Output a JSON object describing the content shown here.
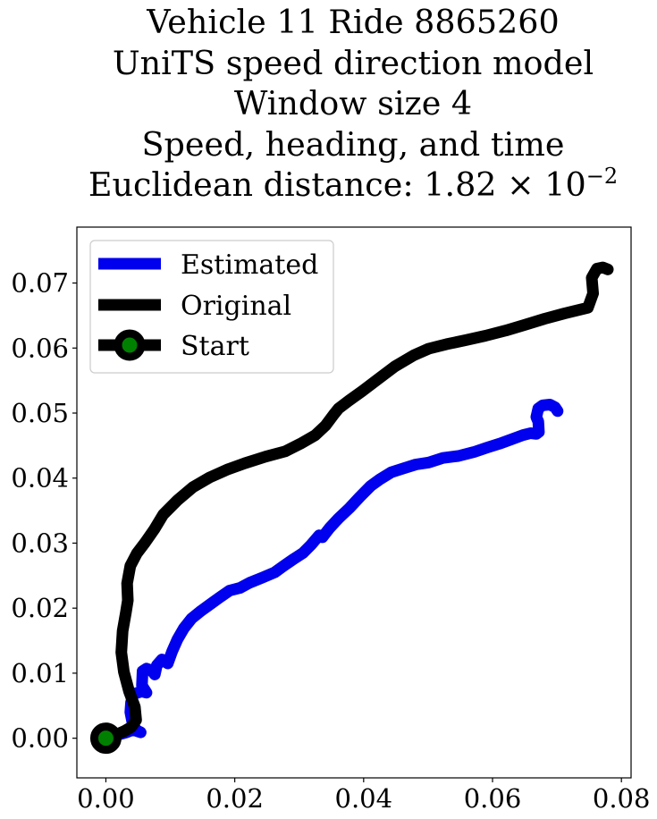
{
  "chart_data": {
    "type": "line",
    "title_lines": [
      "Vehicle 11 Ride 8865260",
      "UniTS speed direction model",
      "Window size 4",
      "Speed, heading, and time",
      "Euclidean distance: 1.82 × 10"
    ],
    "title_exponent": "−2",
    "xlabel": "",
    "ylabel": "",
    "xlim": [
      -0.0045,
      0.0815
    ],
    "ylim": [
      -0.0061,
      0.0786
    ],
    "x_ticks": [
      0.0,
      0.02,
      0.04,
      0.06,
      0.08
    ],
    "x_tick_labels": [
      "0.00",
      "0.02",
      "0.04",
      "0.06",
      "0.08"
    ],
    "y_ticks": [
      0.0,
      0.01,
      0.02,
      0.03,
      0.04,
      0.05,
      0.06,
      0.07
    ],
    "y_tick_labels": [
      "0.00",
      "0.01",
      "0.02",
      "0.03",
      "0.04",
      "0.05",
      "0.06",
      "0.07"
    ],
    "grid": false,
    "legend_position": "top-left",
    "series": [
      {
        "name": "Estimated",
        "color": "#0000ee",
        "points": [
          [
            0.0,
            0.0
          ],
          [
            0.0018,
            0.0005
          ],
          [
            0.0032,
            0.0009
          ],
          [
            0.0042,
            0.0013
          ],
          [
            0.0054,
            0.0009
          ],
          [
            0.0048,
            0.0012
          ],
          [
            0.0042,
            0.002
          ],
          [
            0.0038,
            0.004
          ],
          [
            0.0039,
            0.0055
          ],
          [
            0.0043,
            0.0068
          ],
          [
            0.0056,
            0.0072
          ],
          [
            0.0063,
            0.007
          ],
          [
            0.0056,
            0.0081
          ],
          [
            0.0057,
            0.0103
          ],
          [
            0.0063,
            0.0107
          ],
          [
            0.0071,
            0.0104
          ],
          [
            0.0076,
            0.0098
          ],
          [
            0.0079,
            0.0112
          ],
          [
            0.0087,
            0.0121
          ],
          [
            0.0096,
            0.0115
          ],
          [
            0.0103,
            0.0134
          ],
          [
            0.0111,
            0.0152
          ],
          [
            0.0121,
            0.0169
          ],
          [
            0.0133,
            0.0184
          ],
          [
            0.0148,
            0.0196
          ],
          [
            0.0162,
            0.0206
          ],
          [
            0.0176,
            0.0216
          ],
          [
            0.0192,
            0.0227
          ],
          [
            0.0208,
            0.0231
          ],
          [
            0.0223,
            0.0239
          ],
          [
            0.0243,
            0.0247
          ],
          [
            0.0262,
            0.0255
          ],
          [
            0.0276,
            0.0265
          ],
          [
            0.0292,
            0.0276
          ],
          [
            0.0306,
            0.0285
          ],
          [
            0.0319,
            0.0298
          ],
          [
            0.0331,
            0.0312
          ],
          [
            0.0336,
            0.0309
          ],
          [
            0.0347,
            0.0323
          ],
          [
            0.0361,
            0.0338
          ],
          [
            0.0378,
            0.0354
          ],
          [
            0.0394,
            0.0371
          ],
          [
            0.0411,
            0.0388
          ],
          [
            0.0425,
            0.0398
          ],
          [
            0.0443,
            0.0409
          ],
          [
            0.0462,
            0.0415
          ],
          [
            0.0481,
            0.0421
          ],
          [
            0.0501,
            0.0424
          ],
          [
            0.0523,
            0.0431
          ],
          [
            0.0547,
            0.0434
          ],
          [
            0.0571,
            0.044
          ],
          [
            0.0592,
            0.0447
          ],
          [
            0.0611,
            0.0453
          ],
          [
            0.0628,
            0.0459
          ],
          [
            0.0647,
            0.0466
          ],
          [
            0.0659,
            0.0469
          ],
          [
            0.0668,
            0.0468
          ],
          [
            0.0672,
            0.0471
          ],
          [
            0.0671,
            0.0487
          ],
          [
            0.0668,
            0.0494
          ],
          [
            0.0671,
            0.0507
          ],
          [
            0.0678,
            0.0512
          ],
          [
            0.0689,
            0.0513
          ],
          [
            0.0697,
            0.0509
          ],
          [
            0.0701,
            0.0503
          ]
        ]
      },
      {
        "name": "Original",
        "color": "#000000",
        "points": [
          [
            0.0,
            0.0
          ],
          [
            0.0017,
            0.0006
          ],
          [
            0.0029,
            0.0011
          ],
          [
            0.0039,
            0.0017
          ],
          [
            0.0047,
            0.0028
          ],
          [
            0.0045,
            0.0048
          ],
          [
            0.0036,
            0.0072
          ],
          [
            0.0028,
            0.0102
          ],
          [
            0.0024,
            0.0132
          ],
          [
            0.0026,
            0.0165
          ],
          [
            0.0031,
            0.0193
          ],
          [
            0.0034,
            0.0212
          ],
          [
            0.0033,
            0.0238
          ],
          [
            0.0038,
            0.0265
          ],
          [
            0.0048,
            0.0284
          ],
          [
            0.0061,
            0.0301
          ],
          [
            0.0075,
            0.0321
          ],
          [
            0.0089,
            0.0344
          ],
          [
            0.0111,
            0.0366
          ],
          [
            0.0135,
            0.0386
          ],
          [
            0.0161,
            0.0401
          ],
          [
            0.0188,
            0.0413
          ],
          [
            0.0216,
            0.0423
          ],
          [
            0.0248,
            0.0433
          ],
          [
            0.0278,
            0.0441
          ],
          [
            0.0302,
            0.0453
          ],
          [
            0.0325,
            0.0466
          ],
          [
            0.0341,
            0.0481
          ],
          [
            0.0353,
            0.0497
          ],
          [
            0.0361,
            0.0507
          ],
          [
            0.0377,
            0.0519
          ],
          [
            0.0398,
            0.0534
          ],
          [
            0.0422,
            0.0552
          ],
          [
            0.0449,
            0.0572
          ],
          [
            0.0478,
            0.0589
          ],
          [
            0.0501,
            0.0599
          ],
          [
            0.0529,
            0.0606
          ],
          [
            0.0558,
            0.0612
          ],
          [
            0.0589,
            0.0619
          ],
          [
            0.0621,
            0.0627
          ],
          [
            0.0651,
            0.0636
          ],
          [
            0.0681,
            0.0645
          ],
          [
            0.0711,
            0.0653
          ],
          [
            0.0748,
            0.0662
          ],
          [
            0.0756,
            0.0684
          ],
          [
            0.0754,
            0.0708
          ],
          [
            0.0762,
            0.0722
          ],
          [
            0.0771,
            0.0724
          ],
          [
            0.0779,
            0.0721
          ]
        ]
      },
      {
        "name": "Start",
        "color": "#000000",
        "marker_face_color": "#008000",
        "points": [
          [
            0.0,
            0.0
          ]
        ]
      }
    ]
  }
}
